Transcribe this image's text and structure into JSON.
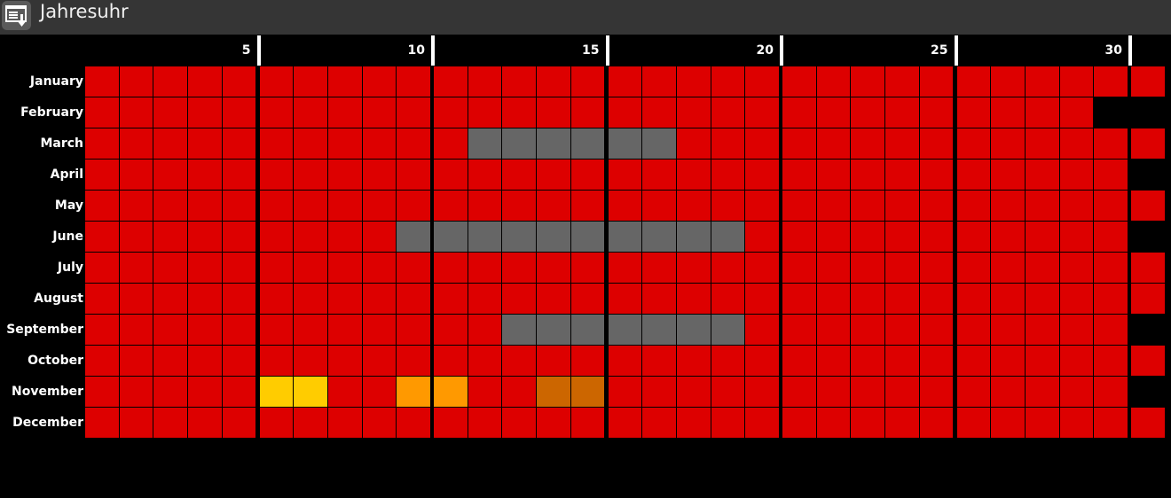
{
  "window": {
    "title": "Jahresuhr",
    "icon": "calendar-download-icon"
  },
  "colors": {
    "default": "#dd0000",
    "gray": "#666666",
    "yellow": "#ffcc00",
    "orange": "#ff9900",
    "dark_orange": "#cc6600"
  },
  "day_ticks": [
    "5",
    "10",
    "15",
    "20",
    "25",
    "30"
  ],
  "months": [
    {
      "name": "January",
      "days": 31
    },
    {
      "name": "February",
      "days": 29
    },
    {
      "name": "March",
      "days": 31
    },
    {
      "name": "April",
      "days": 30
    },
    {
      "name": "May",
      "days": 31
    },
    {
      "name": "June",
      "days": 30
    },
    {
      "name": "July",
      "days": 31
    },
    {
      "name": "August",
      "days": 31
    },
    {
      "name": "September",
      "days": 30
    },
    {
      "name": "October",
      "days": 31
    },
    {
      "name": "November",
      "days": 30
    },
    {
      "name": "December",
      "days": 31
    }
  ],
  "highlights": [
    {
      "month": 3,
      "days": [
        12,
        13,
        14,
        15,
        16,
        17
      ],
      "color": "gray"
    },
    {
      "month": 6,
      "days": [
        10,
        11,
        12,
        13,
        14,
        15,
        16,
        17,
        18,
        19
      ],
      "color": "gray"
    },
    {
      "month": 9,
      "days": [
        13,
        14,
        15,
        16,
        17,
        18,
        19
      ],
      "color": "gray"
    },
    {
      "month": 11,
      "days": [
        6,
        7
      ],
      "color": "yellow"
    },
    {
      "month": 11,
      "days": [
        10,
        11
      ],
      "color": "orange"
    },
    {
      "month": 11,
      "days": [
        14,
        15
      ],
      "color": "dark_orange"
    }
  ]
}
